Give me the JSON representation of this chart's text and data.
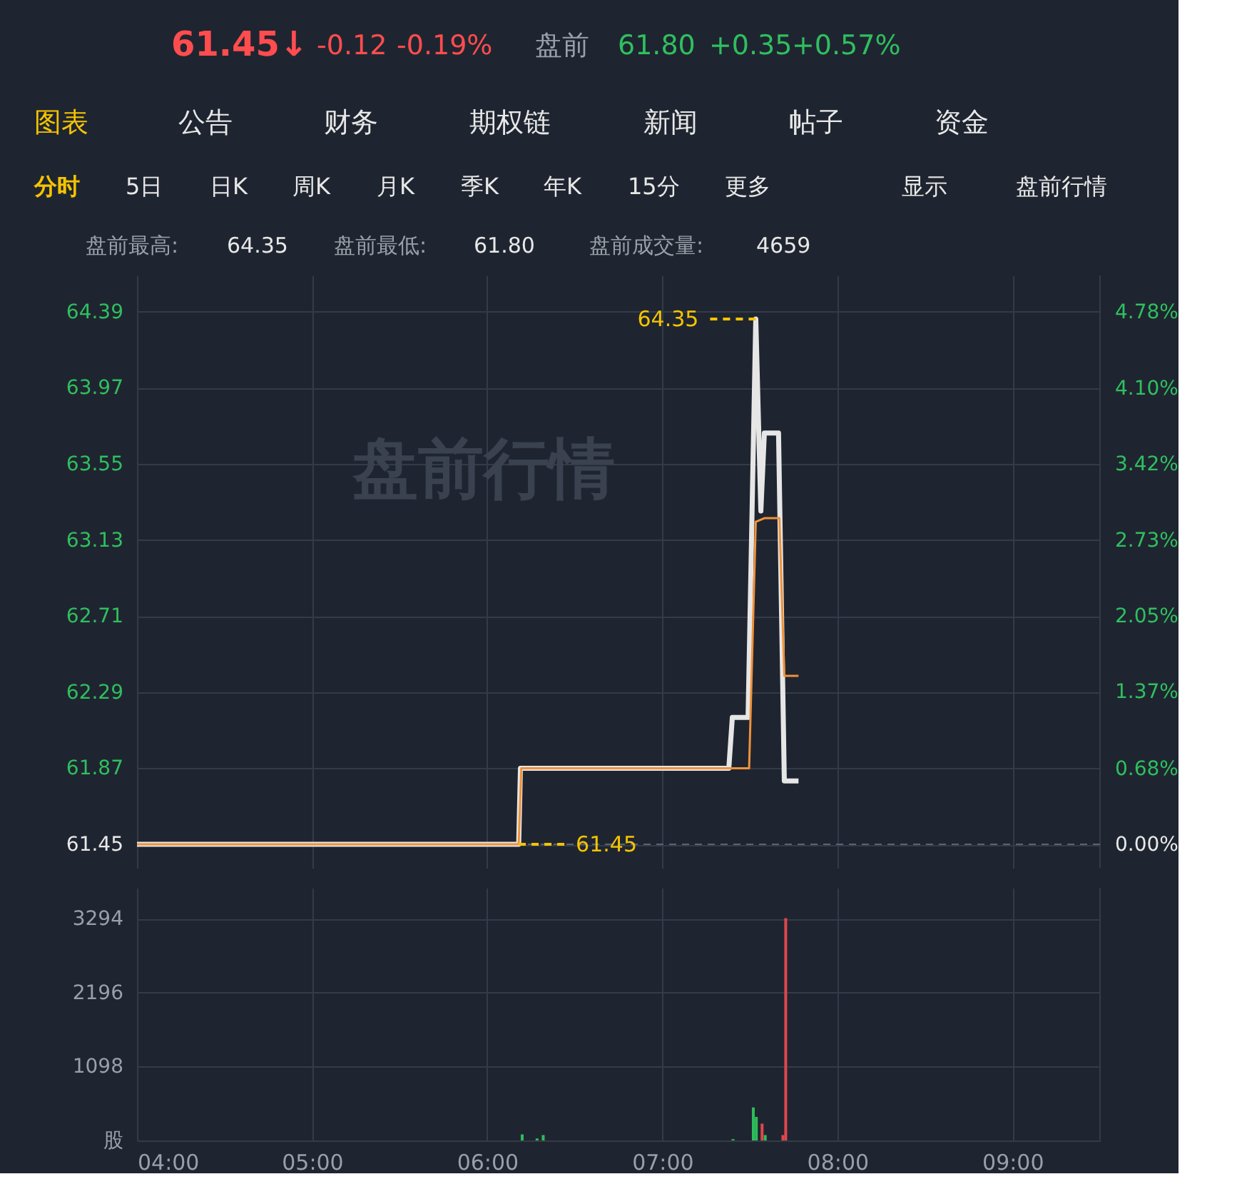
{
  "chart_data": [
    {
      "type": "other",
      "annotations": [
        "61.45↓",
        "-0.12",
        "-0.19%",
        "盘前",
        "61.80",
        "+0.35",
        "+0.57%",
        "图表",
        "公告",
        "财务",
        "期权链",
        "新闻",
        "帖子",
        "资金",
        "分时",
        "5日",
        "日K",
        "周K",
        "月K",
        "季K",
        "年K",
        "15分",
        "更多",
        "显示",
        "盘前行情",
        "盘前最高:",
        "64.35",
        "盘前最低:",
        "61.80",
        "盘前成交量:",
        "4659"
      ]
    },
    {
      "type": "line",
      "xlim": [
        4,
        9.5
      ],
      "xticks": [
        {
          "value": 4,
          "label": null
        },
        {
          "value": 5,
          "label": null
        },
        {
          "value": 6,
          "label": null
        },
        {
          "value": 7,
          "label": null
        },
        {
          "value": 8,
          "label": null
        },
        {
          "value": 9,
          "label": null
        }
      ],
      "ylim": [
        61.32,
        64.59
      ],
      "yticks": [
        61.45,
        61.87,
        62.29,
        62.71,
        63.13,
        63.55,
        63.97,
        64.39
      ],
      "y2lim": [
        -0.21,
        5.11
      ],
      "y2ticks": [
        {
          "value": 0,
          "label": "0.00%"
        },
        {
          "value": 0.68,
          "label": "0.68%"
        },
        {
          "value": 1.37,
          "label": "1.37%"
        },
        {
          "value": 2.05,
          "label": "2.05%"
        },
        {
          "value": 2.73,
          "label": "2.73%"
        },
        {
          "value": 3.42,
          "label": "3.42%"
        },
        {
          "value": 4.1,
          "label": "4.10%"
        },
        {
          "value": 4.78,
          "label": "4.78%"
        }
      ],
      "tick_labels": "y",
      "grid": true,
      "series": [
        {
          "color": "#e6e6e6",
          "x": [
            4,
            6.18,
            6.19,
            7.38,
            7.4,
            7.49,
            7.534,
            7.563,
            7.583,
            7.664,
            7.697,
            7.778
          ],
          "values": [
            61.45,
            61.45,
            61.87,
            61.87,
            62.15,
            62.15,
            64.35,
            63.29,
            63.72,
            63.72,
            61.8,
            61.8
          ]
        },
        {
          "color": "#f0923a",
          "x": [
            4,
            6.18,
            6.195,
            7.496,
            7.534,
            7.583,
            7.669,
            7.697,
            7.778
          ],
          "values": [
            61.45,
            61.45,
            61.87,
            61.87,
            63.23,
            63.25,
            63.25,
            62.38,
            62.38
          ]
        }
      ],
      "ref_lines": [
        {
          "axis": "y",
          "value": 61.45,
          "color": "#5b6270",
          "line_style": "dashed"
        }
      ],
      "annotations": [
        "盘前行情",
        {
          "text": "64.35",
          "x": 7.534,
          "y": 64.35
        },
        {
          "text": "61.45",
          "x": 6.18,
          "y": 61.45
        }
      ]
    },
    {
      "type": "bar",
      "x": [
        6.2,
        6.285,
        6.32,
        7.404,
        7.52,
        7.537,
        7.57,
        7.588,
        7.689,
        7.705
      ],
      "values": [
        90,
        30,
        80,
        20,
        490,
        350,
        250,
        80,
        80,
        3300
      ],
      "colors": [
        "#2dbd5a",
        "#2dbd5a",
        "#2dbd5a",
        "#2dbd5a",
        "#2dbd5a",
        "#2dbd5a",
        "#e0474c",
        "#2dbd5a",
        "#e0474c",
        "#e0474c"
      ],
      "xlim": [
        4,
        9.5
      ],
      "xticks": [
        {
          "value": 4,
          "label": "04:00"
        },
        {
          "value": 5,
          "label": "05:00"
        },
        {
          "value": 6,
          "label": "06:00"
        },
        {
          "value": 7,
          "label": "07:00"
        },
        {
          "value": 8,
          "label": "08:00"
        },
        {
          "value": 9,
          "label": "09:00"
        }
      ],
      "ylim": [
        0,
        3750
      ],
      "yticks": [
        {
          "value": 0,
          "label": "股"
        },
        1098,
        2196,
        3294
      ],
      "grid": true
    }
  ]
}
